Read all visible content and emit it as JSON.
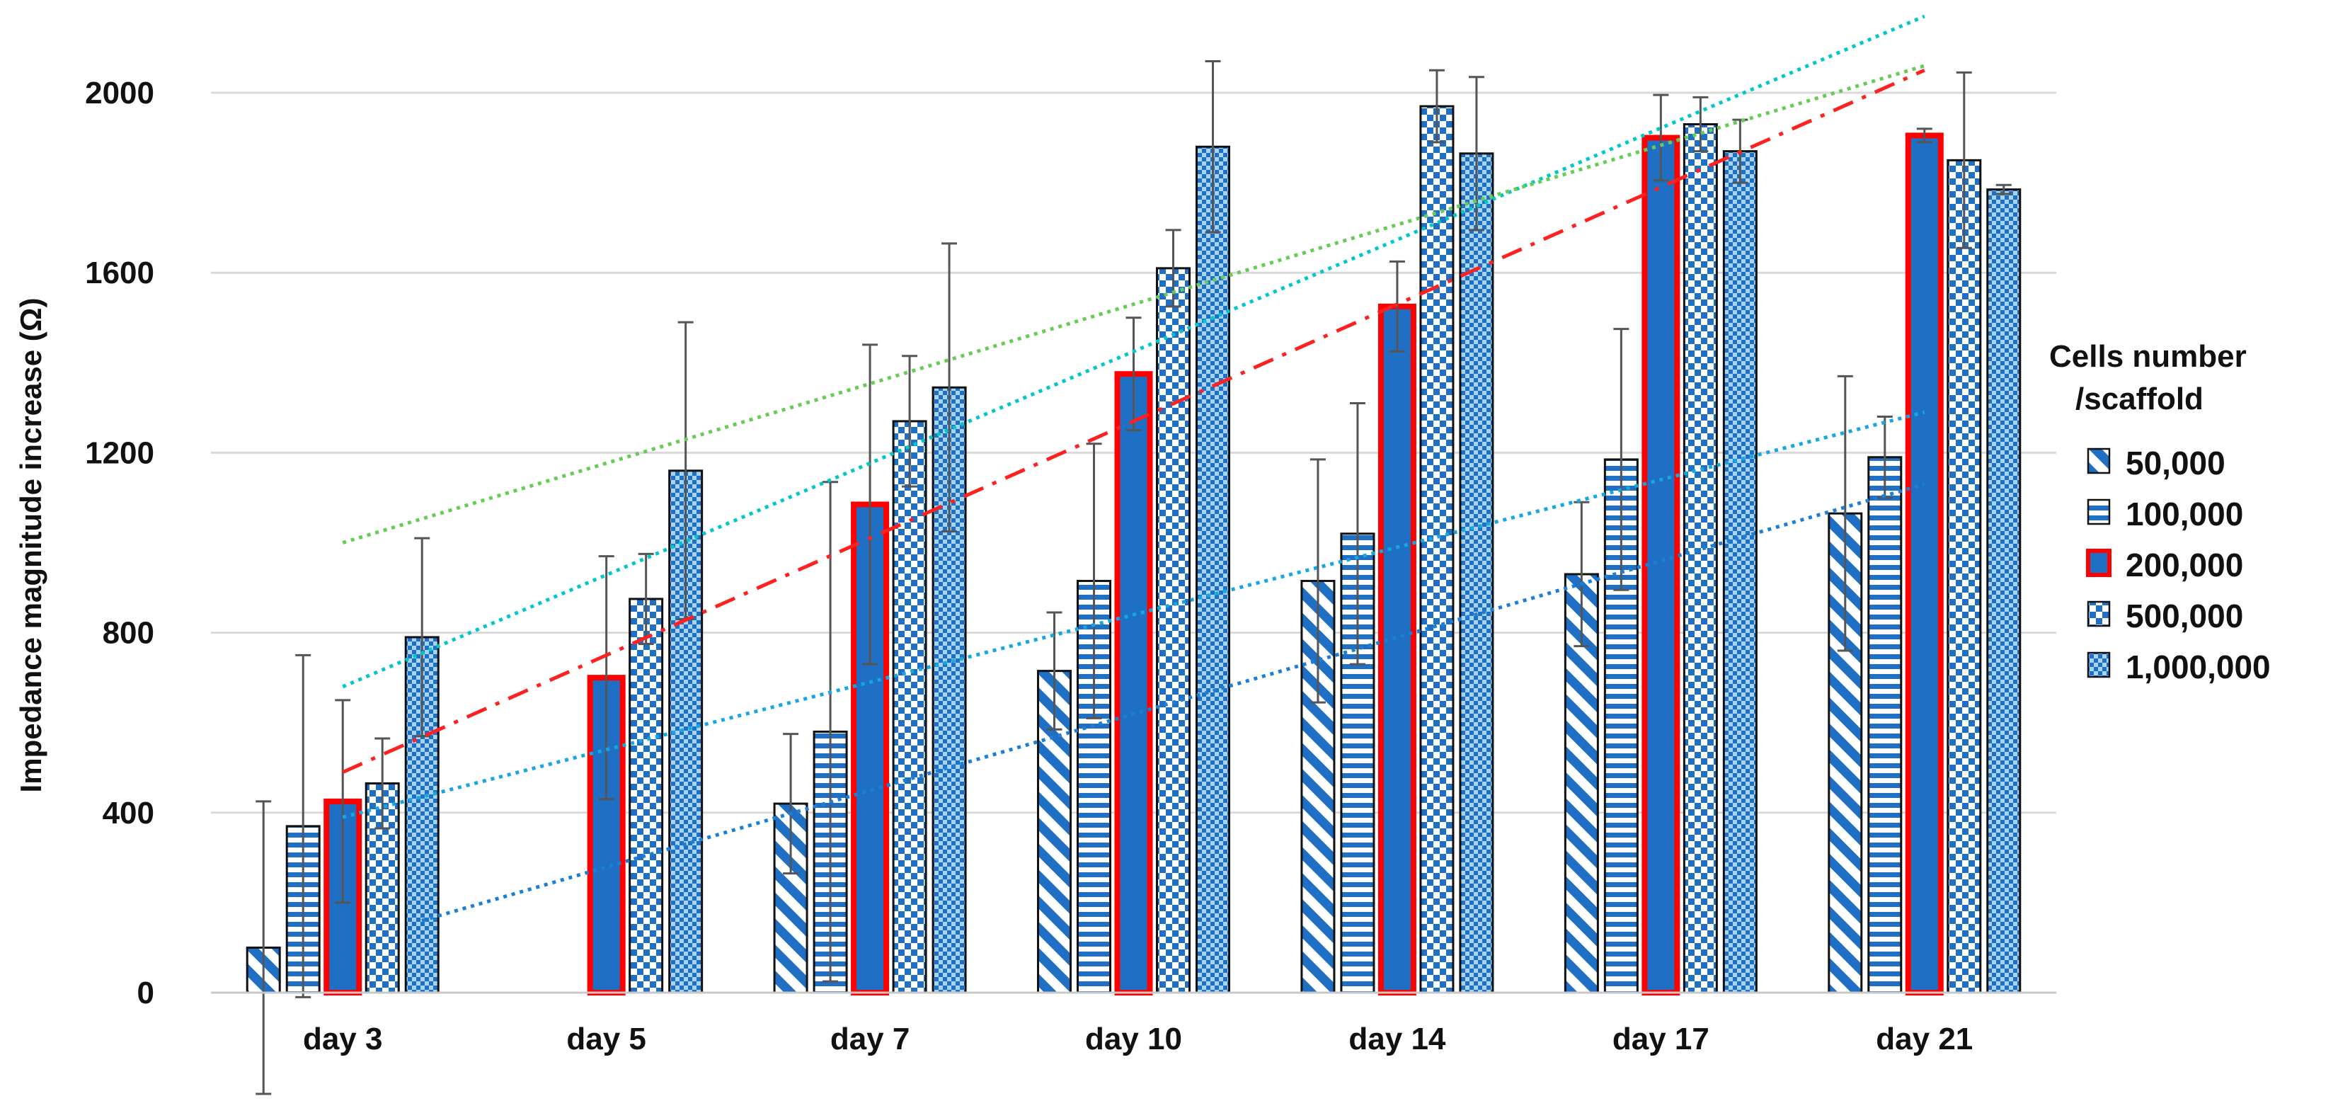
{
  "chart_data": {
    "type": "bar",
    "ylabel": "Impedance magnitude increase (Ω)",
    "xlabel": "",
    "ylim": [
      0,
      2000
    ],
    "yticks": [
      0,
      400,
      800,
      1200,
      1600,
      2000
    ],
    "ytick_labels": [
      "0",
      "400",
      "800",
      "1200",
      "1600",
      "2000"
    ],
    "grid": true,
    "categories": [
      "day 3",
      "day 5",
      "day 7",
      "day 10",
      "day 14",
      "day 17",
      "day 21"
    ],
    "legend": {
      "title_line1": "Cells number",
      "title_line2": "/scaffold",
      "position": "right"
    },
    "series": [
      {
        "name": "50,000",
        "pattern": "diagonal",
        "color": "#1f6fc5",
        "values": [
          100,
          0,
          420,
          715,
          915,
          930,
          1065
        ],
        "errors": [
          325,
          0,
          155,
          130,
          270,
          160,
          305
        ]
      },
      {
        "name": "100,000",
        "pattern": "horizontal",
        "color": "#1f6fc5",
        "values": [
          370,
          0,
          580,
          915,
          1020,
          1185,
          1190
        ],
        "errors": [
          380,
          0,
          555,
          305,
          290,
          290,
          90
        ]
      },
      {
        "name": "200,000",
        "pattern": "solid",
        "color": "#1f6fc5",
        "border": "#ff0000",
        "values": [
          425,
          700,
          1085,
          1375,
          1525,
          1900,
          1905
        ],
        "errors": [
          225,
          270,
          355,
          125,
          100,
          95,
          15
        ]
      },
      {
        "name": "500,000",
        "pattern": "checker",
        "color": "#1f6fc5",
        "values": [
          465,
          875,
          1270,
          1610,
          1970,
          1930,
          1850
        ],
        "errors": [
          100,
          100,
          145,
          85,
          80,
          60,
          195
        ]
      },
      {
        "name": "1,000,000",
        "pattern": "finecheck",
        "color": "#1f6fc5",
        "values": [
          790,
          1160,
          1345,
          1880,
          1865,
          1870,
          1785
        ],
        "errors": [
          220,
          330,
          320,
          190,
          170,
          70,
          10
        ]
      }
    ],
    "trendlines": [
      {
        "color": "#1c7fd6",
        "style": "dotted",
        "start": [
          0.3,
          160
        ],
        "end": [
          6.0,
          1130
        ]
      },
      {
        "color": "#14a8e0",
        "style": "dotted",
        "start": [
          0.0,
          390
        ],
        "end": [
          6.0,
          1290
        ]
      },
      {
        "color": "#ff2020",
        "style": "dashdot",
        "start": [
          0.0,
          490
        ],
        "end": [
          6.0,
          2050
        ]
      },
      {
        "color": "#00c8c8",
        "style": "dotted",
        "start": [
          0.0,
          680
        ],
        "end": [
          6.0,
          2170
        ]
      },
      {
        "color": "#66cc55",
        "style": "dotted",
        "start": [
          0.0,
          1000
        ],
        "end": [
          6.0,
          2060
        ]
      }
    ]
  }
}
